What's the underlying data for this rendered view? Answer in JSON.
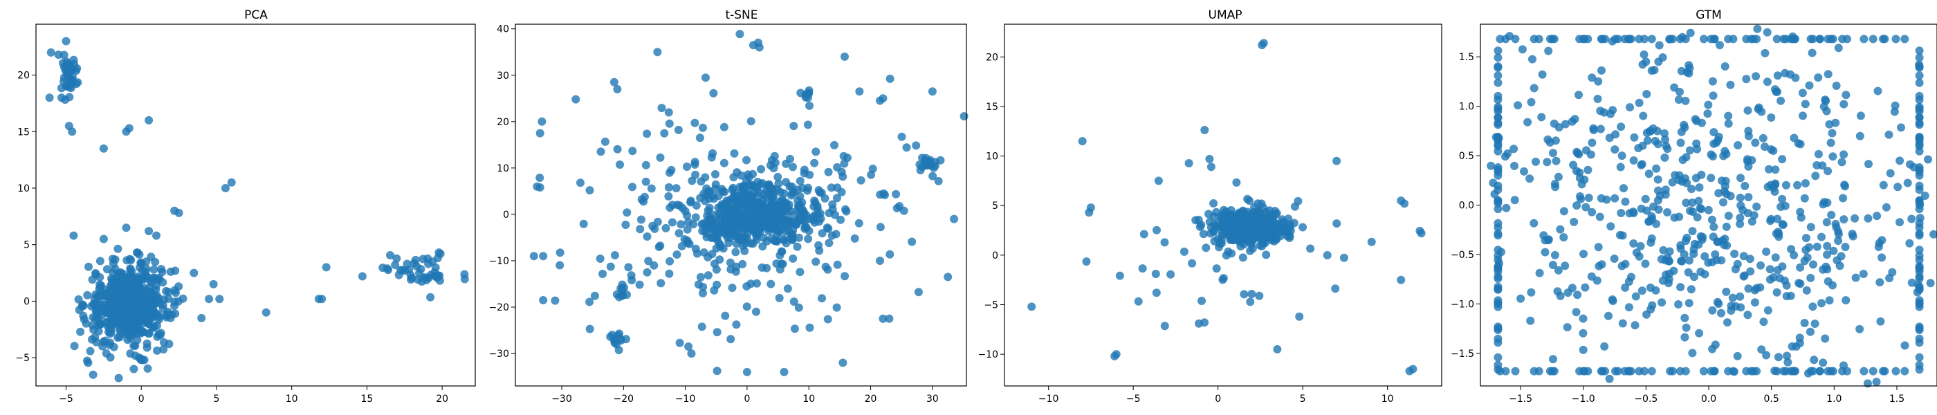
{
  "figure": {
    "marker_color": "#1f77b4",
    "marker_alpha": 0.8
  },
  "chart_data": [
    {
      "type": "scatter",
      "title": "PCA",
      "xlabel": "",
      "ylabel": "",
      "xlim": [
        -7.0,
        22.2
      ],
      "ylim": [
        -7.5,
        24.5
      ],
      "xticks": [
        -5,
        0,
        5,
        10,
        15,
        20
      ],
      "yticks": [
        -5,
        0,
        5,
        10,
        15,
        20
      ],
      "grid": false,
      "clusters": [
        {
          "cx": -0.8,
          "cy": -0.3,
          "sx": 1.4,
          "sy": 1.8,
          "n": 500
        },
        {
          "cx": -4.8,
          "cy": 20.0,
          "sx": 0.3,
          "sy": 0.9,
          "n": 40
        },
        {
          "cx": 18.5,
          "cy": 2.7,
          "sx": 1.4,
          "sy": 0.8,
          "n": 45
        }
      ],
      "points": [
        [
          -6.0,
          22.0
        ],
        [
          -5.5,
          21.8
        ],
        [
          -5.3,
          18.0
        ],
        [
          -6.1,
          18.0
        ],
        [
          -5.0,
          23.0
        ],
        [
          -1.0,
          15.0
        ],
        [
          -0.8,
          15.3
        ],
        [
          -2.5,
          13.5
        ],
        [
          0.5,
          16.0
        ],
        [
          -4.8,
          15.5
        ],
        [
          -4.6,
          15.0
        ],
        [
          -4.5,
          5.8
        ],
        [
          6.0,
          10.5
        ],
        [
          5.6,
          10.0
        ],
        [
          2.2,
          8.0
        ],
        [
          2.5,
          7.8
        ],
        [
          8.3,
          -1.0
        ],
        [
          11.8,
          0.2
        ],
        [
          12.0,
          0.2
        ],
        [
          12.3,
          3.0
        ],
        [
          14.7,
          2.2
        ],
        [
          4.5,
          0.2
        ],
        [
          5.2,
          0.2
        ],
        [
          4.8,
          1.5
        ],
        [
          4.0,
          -1.5
        ],
        [
          3.5,
          2.5
        ],
        [
          -1.0,
          6.5
        ],
        [
          0.5,
          6.2
        ],
        [
          -2.5,
          5.5
        ],
        [
          1.0,
          5.8
        ],
        [
          -3.2,
          -6.5
        ],
        [
          -1.5,
          -6.8
        ],
        [
          -0.5,
          -6.0
        ],
        [
          0.2,
          -5.2
        ]
      ]
    },
    {
      "type": "scatter",
      "title": "t-SNE",
      "xlabel": "",
      "ylabel": "",
      "xlim": [
        -37.5,
        35.5
      ],
      "ylim": [
        -37,
        41
      ],
      "xticks": [
        -30,
        -20,
        -10,
        0,
        10,
        20,
        30
      ],
      "yticks": [
        -30,
        -20,
        -10,
        0,
        10,
        20,
        30,
        40
      ],
      "grid": false,
      "clusters": [
        {
          "cx": 1.0,
          "cy": 0.0,
          "sx": 4.5,
          "sy": 3.5,
          "n": 420
        },
        {
          "cx": 0.0,
          "cy": 0.0,
          "sx": 13.5,
          "sy": 12.0,
          "n": 300
        },
        {
          "cx": 29.5,
          "cy": 10.5,
          "sx": 0.9,
          "sy": 1.0,
          "n": 20
        },
        {
          "cx": -21.0,
          "cy": -27.0,
          "sx": 0.8,
          "sy": 0.8,
          "n": 12
        },
        {
          "cx": -20.0,
          "cy": -17.0,
          "sx": 0.8,
          "sy": 0.8,
          "n": 10
        },
        {
          "cx": 9.5,
          "cy": 26.0,
          "sx": 0.8,
          "sy": 0.5,
          "n": 8
        }
      ],
      "points": [
        [
          -34.0,
          6.0
        ],
        [
          -33.5,
          5.8
        ],
        [
          -33.2,
          20.0
        ],
        [
          -33.5,
          17.5
        ],
        [
          -34.5,
          -9.0
        ],
        [
          -33.0,
          -9.0
        ],
        [
          -33.0,
          -18.5
        ],
        [
          -21.5,
          28.5
        ],
        [
          -21.0,
          27.0
        ],
        [
          -14.5,
          35.0
        ],
        [
          1.0,
          36.5
        ],
        [
          1.8,
          37.0
        ],
        [
          2.0,
          36.0
        ],
        [
          15.8,
          34.0
        ],
        [
          21.5,
          24.5
        ],
        [
          22.0,
          25.0
        ],
        [
          33.5,
          -1.0
        ],
        [
          32.5,
          -13.5
        ],
        [
          30.0,
          26.5
        ],
        [
          0.0,
          -34.0
        ],
        [
          6.0,
          -34.0
        ],
        [
          15.5,
          -32.0
        ],
        [
          -9.5,
          -28.5
        ],
        [
          -9.0,
          -30.0
        ],
        [
          22.0,
          -22.5
        ],
        [
          23.0,
          -22.5
        ]
      ]
    },
    {
      "type": "scatter",
      "title": "UMAP",
      "xlabel": "",
      "ylabel": "",
      "xlim": [
        -12.6,
        13.2
      ],
      "ylim": [
        -13.2,
        23.3
      ],
      "xticks": [
        -10,
        -5,
        0,
        5,
        10
      ],
      "yticks": [
        -10,
        -5,
        0,
        5,
        10,
        15,
        20
      ],
      "grid": false,
      "clusters": [
        {
          "cx": 1.9,
          "cy": 2.8,
          "sx": 1.1,
          "sy": 0.9,
          "n": 450
        },
        {
          "cx": 0.0,
          "cy": 0.0,
          "sx": 4.5,
          "sy": 4.5,
          "n": 45
        }
      ],
      "points": [
        [
          2.6,
          21.2
        ],
        [
          2.7,
          21.4
        ],
        [
          -8.0,
          11.5
        ],
        [
          -7.5,
          4.8
        ],
        [
          -11.0,
          -5.2
        ],
        [
          -6.0,
          -10.0
        ],
        [
          -6.1,
          -10.2
        ],
        [
          -0.8,
          -6.8
        ],
        [
          10.8,
          5.5
        ],
        [
          11.0,
          5.2
        ],
        [
          12.0,
          2.2
        ],
        [
          10.8,
          -2.5
        ],
        [
          7.0,
          9.5
        ],
        [
          3.5,
          -9.5
        ],
        [
          11.5,
          -11.5
        ],
        [
          11.3,
          -11.7
        ],
        [
          -0.5,
          9.7
        ],
        [
          -0.4,
          8.9
        ],
        [
          -3.5,
          7.5
        ],
        [
          4.8,
          -6.2
        ]
      ]
    },
    {
      "type": "scatter",
      "title": "GTM",
      "xlabel": "",
      "ylabel": "",
      "xlim": [
        -1.82,
        1.82
      ],
      "ylim": [
        -1.83,
        1.83
      ],
      "xticks": [
        -1.5,
        -1.0,
        -0.5,
        0.0,
        0.5,
        1.0,
        1.5
      ],
      "yticks": [
        -1.5,
        -1.0,
        -0.5,
        0.0,
        0.5,
        1.0,
        1.5
      ],
      "grid": false,
      "clusters": [
        {
          "cx": 0.0,
          "cy": 0.0,
          "sx": 0.9,
          "sy": 0.9,
          "n": 650
        }
      ],
      "edges": {
        "lo": -1.68,
        "hi": 1.68,
        "n": 60
      },
      "points": []
    }
  ]
}
